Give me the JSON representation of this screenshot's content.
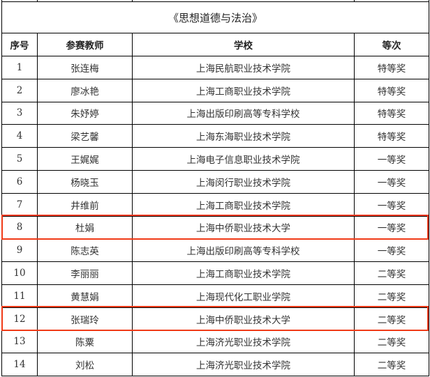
{
  "title": "《思想道德与法治》",
  "columns": [
    "序号",
    "参赛教师",
    "学校",
    "等次"
  ],
  "rows": [
    {
      "no": "1",
      "teacher": "张连梅",
      "school": "上海民航职业技术学院",
      "award": "特等奖"
    },
    {
      "no": "2",
      "teacher": "廖冰艳",
      "school": "上海工商职业技术学院",
      "award": "特等奖"
    },
    {
      "no": "3",
      "teacher": "朱妤婷",
      "school": "上海出版印刷高等专科学校",
      "award": "特等奖"
    },
    {
      "no": "4",
      "teacher": "梁艺馨",
      "school": "上海东海职业技术学院",
      "award": "特等奖"
    },
    {
      "no": "5",
      "teacher": "王娓娓",
      "school": "上海电子信息职业技术学院",
      "award": "一等奖"
    },
    {
      "no": "6",
      "teacher": "杨晓玉",
      "school": "上海闵行职业技术学院",
      "award": "一等奖"
    },
    {
      "no": "7",
      "teacher": "井维前",
      "school": "上海工商职业技术学院",
      "award": "一等奖"
    },
    {
      "no": "8",
      "teacher": "杜娟",
      "school": "上海中侨职业技术大学",
      "award": "一等奖",
      "highlighted": true
    },
    {
      "no": "9",
      "teacher": "陈志英",
      "school": "上海出版印刷高等专科学校",
      "award": "一等奖"
    },
    {
      "no": "10",
      "teacher": "李丽丽",
      "school": "上海工商职业技术学院",
      "award": "二等奖"
    },
    {
      "no": "11",
      "teacher": "黄慧娟",
      "school": "上海现代化工职业学院",
      "award": "二等奖"
    },
    {
      "no": "12",
      "teacher": "张瑞玲",
      "school": "上海中侨职业技术大学",
      "award": "二等奖",
      "highlighted": true
    },
    {
      "no": "13",
      "teacher": "陈粟",
      "school": "上海济光职业技术学院",
      "award": "二等奖"
    },
    {
      "no": "14",
      "teacher": "刘松",
      "school": "上海济光职业技术学院",
      "award": "二等奖"
    }
  ],
  "highlight_color": "#f03a17"
}
